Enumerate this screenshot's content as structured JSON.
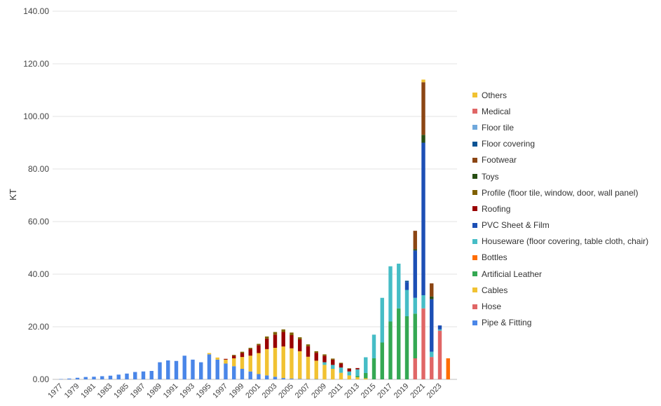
{
  "chart_data": {
    "type": "bar",
    "stacked": true,
    "title": "",
    "xlabel": "",
    "ylabel": "KT",
    "ylim": [
      0,
      140
    ],
    "yticks": [
      "0.00",
      "20.00",
      "40.00",
      "60.00",
      "80.00",
      "100.00",
      "120.00",
      "140.00"
    ],
    "grid": true,
    "legend_position": "right",
    "categories": [
      "1977",
      "1978",
      "1979",
      "1980",
      "1981",
      "1982",
      "1983",
      "1984",
      "1985",
      "1986",
      "1987",
      "1988",
      "1989",
      "1990",
      "1991",
      "1992",
      "1993",
      "1994",
      "1995",
      "1996",
      "1997",
      "1998",
      "1999",
      "2000",
      "2001",
      "2002",
      "2003",
      "2004",
      "2005",
      "2006",
      "2007",
      "2008",
      "2009",
      "2010",
      "2011",
      "2012",
      "2013",
      "2014",
      "2015",
      "2016",
      "2017",
      "2018",
      "2019",
      "2020",
      "2021",
      "2022",
      "2023",
      "2024"
    ],
    "xtick_labels": [
      "1977",
      "1979",
      "1981",
      "1983",
      "1985",
      "1987",
      "1989",
      "1991",
      "1993",
      "1995",
      "1997",
      "1999",
      "2001",
      "2003",
      "2005",
      "2007",
      "2009",
      "2011",
      "2013",
      "2015",
      "2017",
      "2019",
      "2021",
      "2023"
    ],
    "series": [
      {
        "name": "Pipe & Fitting",
        "color": "#4a86e8",
        "values": [
          0.1,
          0.3,
          0.6,
          0.9,
          1.0,
          1.2,
          1.4,
          1.8,
          2.2,
          2.8,
          3.0,
          3.2,
          6.5,
          7.2,
          7.0,
          9.0,
          7.5,
          6.5,
          9.5,
          7.5,
          6.0,
          5.0,
          4.0,
          3.0,
          2.0,
          1.5,
          1.0,
          0.5,
          0.3,
          0.2,
          0.1,
          0.1,
          0,
          0,
          0,
          0,
          0,
          0,
          0,
          0,
          0,
          0,
          0,
          0,
          0,
          0,
          0,
          0
        ]
      },
      {
        "name": "Hose",
        "color": "#e06666",
        "values": [
          0,
          0,
          0,
          0,
          0,
          0,
          0,
          0,
          0,
          0,
          0,
          0,
          0,
          0,
          0,
          0,
          0,
          0,
          0,
          0,
          0,
          0,
          0,
          0,
          0,
          0,
          0,
          0,
          0,
          0,
          0,
          0,
          0,
          0,
          0,
          0,
          0,
          0,
          0,
          0,
          0,
          0,
          0,
          8.0,
          27.0,
          8.5,
          18.5,
          0
        ]
      },
      {
        "name": "Cables",
        "color": "#f1c232",
        "values": [
          0,
          0,
          0,
          0,
          0,
          0,
          0,
          0,
          0,
          0,
          0,
          0,
          0,
          0,
          0,
          0,
          0,
          0,
          0.5,
          0.8,
          1.5,
          3.0,
          4.5,
          6.0,
          8.0,
          10.0,
          11.0,
          12.0,
          11.5,
          10.5,
          8.5,
          7.0,
          5.5,
          4.0,
          2.5,
          1.5,
          0.8,
          0.4,
          0,
          0,
          0,
          0,
          0,
          0,
          0,
          0,
          0,
          0
        ]
      },
      {
        "name": "Artificial Leather",
        "color": "#34a853",
        "values": [
          0,
          0,
          0,
          0,
          0,
          0,
          0,
          0,
          0,
          0,
          0,
          0,
          0,
          0,
          0,
          0,
          0,
          0,
          0,
          0,
          0,
          0,
          0,
          0,
          0,
          0,
          0,
          0,
          0,
          0,
          0,
          0,
          0,
          0,
          0,
          0,
          0.5,
          2.0,
          8.0,
          14.0,
          22.0,
          27.0,
          24.0,
          17.0,
          0,
          0,
          0,
          0
        ]
      },
      {
        "name": "Bottles",
        "color": "#ff6d01",
        "values": [
          0,
          0,
          0,
          0,
          0,
          0,
          0,
          0,
          0,
          0,
          0,
          0,
          0,
          0,
          0,
          0,
          0,
          0,
          0,
          0,
          0,
          0,
          0,
          0,
          0,
          0,
          0,
          0,
          0,
          0,
          0,
          0,
          0,
          0,
          0,
          0,
          0,
          0,
          0,
          0,
          0,
          0,
          0,
          0,
          0,
          0,
          0,
          8.0
        ]
      },
      {
        "name": "Houseware (floor covering, table cloth, chair)",
        "color": "#46bdc6",
        "values": [
          0,
          0,
          0,
          0,
          0,
          0,
          0,
          0,
          0,
          0,
          0,
          0,
          0,
          0,
          0,
          0,
          0,
          0,
          0,
          0,
          0,
          0,
          0,
          0,
          0,
          0,
          0,
          0,
          0,
          0,
          0,
          0,
          1.0,
          1.5,
          2.0,
          1.5,
          2.5,
          6.0,
          9.0,
          17.0,
          21.0,
          17.0,
          10.0,
          6.0,
          5.0,
          2.0,
          0.5,
          0
        ]
      },
      {
        "name": "PVC Sheet & Film",
        "color": "#1c4fb5",
        "values": [
          0,
          0,
          0,
          0,
          0,
          0,
          0,
          0,
          0,
          0,
          0,
          0,
          0,
          0,
          0,
          0,
          0,
          0,
          0,
          0,
          0,
          0,
          0,
          0,
          0,
          0,
          0,
          0,
          0,
          0,
          0,
          0,
          0,
          0,
          0,
          0,
          0,
          0,
          0,
          0,
          0,
          0,
          3.0,
          18.0,
          58.0,
          20.0,
          1.5,
          0
        ]
      },
      {
        "name": "Roofing",
        "color": "#990000",
        "values": [
          0,
          0,
          0,
          0,
          0,
          0,
          0,
          0,
          0,
          0,
          0,
          0,
          0,
          0,
          0,
          0,
          0,
          0,
          0,
          0,
          0.3,
          1.0,
          1.5,
          2.5,
          3.0,
          4.0,
          5.0,
          5.5,
          5.0,
          4.5,
          4.0,
          3.0,
          2.5,
          2.0,
          1.5,
          1.0,
          0.5,
          0,
          0,
          0,
          0,
          0,
          0,
          0,
          0,
          0,
          0,
          0
        ]
      },
      {
        "name": "Profile (floor tile, window, door, wall panel)",
        "color": "#7f6000",
        "values": [
          0,
          0,
          0,
          0,
          0,
          0,
          0,
          0,
          0,
          0,
          0,
          0,
          0,
          0,
          0,
          0,
          0,
          0,
          0,
          0,
          0,
          0.3,
          0.5,
          0.5,
          0.5,
          0.8,
          1.0,
          1.0,
          1.0,
          0.8,
          0.7,
          0.6,
          0.5,
          0.4,
          0.3,
          0.2,
          0,
          0,
          0,
          0,
          0,
          0,
          0,
          0,
          0,
          0,
          0,
          0
        ]
      },
      {
        "name": "Toys",
        "color": "#274e13",
        "values": [
          0,
          0,
          0,
          0,
          0,
          0,
          0,
          0,
          0,
          0,
          0,
          0,
          0,
          0,
          0,
          0,
          0,
          0,
          0,
          0,
          0,
          0,
          0,
          0,
          0,
          0,
          0,
          0,
          0,
          0,
          0,
          0,
          0,
          0,
          0,
          0,
          0,
          0,
          0,
          0,
          0,
          0,
          0,
          0.5,
          3.0,
          1.0,
          0,
          0
        ]
      },
      {
        "name": "Footwear",
        "color": "#8b4513",
        "values": [
          0,
          0,
          0,
          0,
          0,
          0,
          0,
          0,
          0,
          0,
          0,
          0,
          0,
          0,
          0,
          0,
          0,
          0,
          0,
          0,
          0,
          0,
          0,
          0,
          0,
          0,
          0,
          0,
          0,
          0,
          0,
          0,
          0,
          0,
          0,
          0,
          0,
          0,
          0,
          0,
          0,
          0,
          0,
          7.0,
          20.0,
          5.0,
          0,
          0
        ]
      },
      {
        "name": "Floor covering",
        "color": "#0b5394",
        "values": [
          0,
          0,
          0,
          0,
          0,
          0,
          0,
          0,
          0,
          0,
          0,
          0,
          0,
          0,
          0,
          0,
          0,
          0,
          0,
          0,
          0,
          0,
          0,
          0,
          0,
          0,
          0,
          0,
          0,
          0,
          0,
          0,
          0,
          0,
          0,
          0,
          0,
          0,
          0,
          0,
          0,
          0,
          0.5,
          0,
          0,
          0,
          0,
          0
        ]
      },
      {
        "name": "Floor tile",
        "color": "#6fa8dc",
        "values": [
          0,
          0,
          0,
          0,
          0,
          0,
          0,
          0,
          0,
          0,
          0,
          0,
          0,
          0,
          0,
          0,
          0,
          0,
          0,
          0,
          0,
          0,
          0,
          0,
          0,
          0,
          0,
          0,
          0,
          0,
          0,
          0,
          0,
          0,
          0,
          0,
          0,
          0,
          0,
          0,
          0,
          0,
          0,
          0,
          0,
          0,
          0,
          0
        ]
      },
      {
        "name": "Medical",
        "color": "#e06666",
        "values": [
          0,
          0,
          0,
          0,
          0,
          0,
          0,
          0,
          0,
          0,
          0,
          0,
          0,
          0,
          0,
          0,
          0,
          0,
          0,
          0,
          0,
          0,
          0,
          0,
          0,
          0,
          0,
          0,
          0,
          0,
          0,
          0,
          0,
          0,
          0,
          0,
          0,
          0,
          0,
          0,
          0,
          0,
          0,
          0,
          0,
          0,
          0,
          0
        ]
      },
      {
        "name": "Others",
        "color": "#f1c232",
        "values": [
          0,
          0,
          0,
          0,
          0,
          0,
          0,
          0,
          0,
          0,
          0,
          0,
          0,
          0,
          0,
          0,
          0,
          0,
          0,
          0,
          0,
          0,
          0,
          0,
          0,
          0,
          0,
          0,
          0,
          0,
          0,
          0,
          0,
          0,
          0,
          0,
          0,
          0,
          0,
          0,
          0,
          0,
          0,
          0,
          1.0,
          0,
          0,
          0
        ]
      }
    ],
    "legend_order": [
      "Others",
      "Medical",
      "Floor tile",
      "Floor covering",
      "Footwear",
      "Toys",
      "Profile (floor tile, window, door, wall panel)",
      "Roofing",
      "PVC Sheet & Film",
      "Houseware (floor covering, table cloth, chair)",
      "Bottles",
      "Artificial Leather",
      "Cables",
      "Hose",
      "Pipe & Fitting"
    ]
  }
}
